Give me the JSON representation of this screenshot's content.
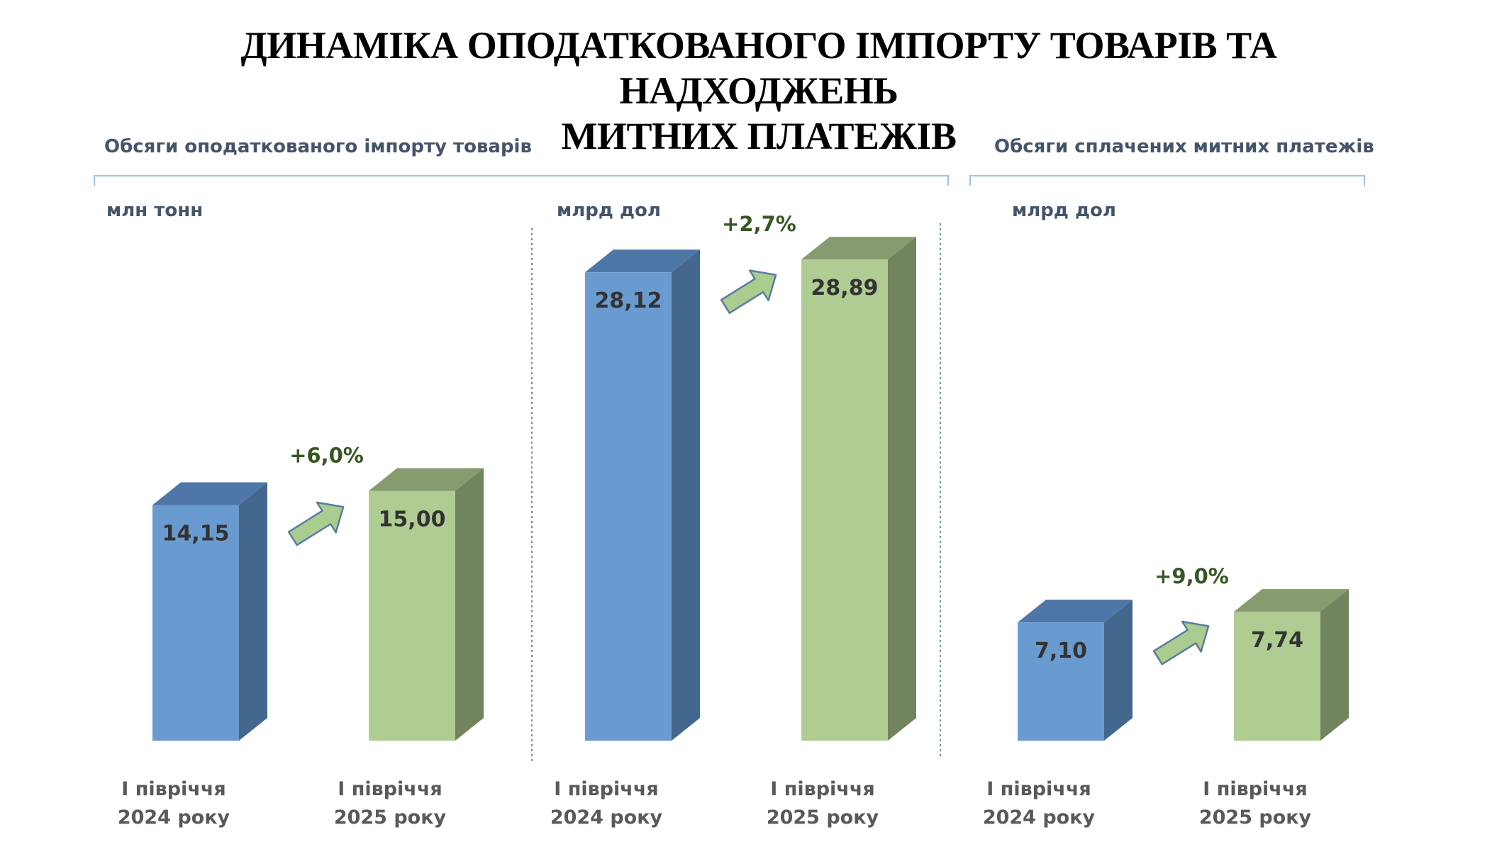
{
  "title_line1": "ДИНАМІКА ОПОДАТКОВАНОГО ІМПОРТУ ТОВАРІВ ТА НАДХОДЖЕНЬ",
  "title_line2": "МИТНИХ ПЛАТЕЖІВ",
  "groups": {
    "import": "Обсяги оподаткованого імпорту товарів",
    "payments": "Обсяги сплачених митних платежів"
  },
  "colors": {
    "blue_front": "#6A9BD0",
    "blue_side": "#44678D",
    "blue_top": "#4E77A8",
    "green_front": "#AFCD92",
    "green_side": "#71845E",
    "green_top": "#869C6E",
    "arrow_fill": "#A9CC8F",
    "arrow_stroke": "#5A7DA0"
  },
  "chart_data": [
    {
      "type": "bar",
      "unit": "млн тонн",
      "categories": [
        [
          "І півріччя",
          "2024 року"
        ],
        [
          "І півріччя",
          "2025 року"
        ]
      ],
      "values": [
        14.15,
        15.0
      ],
      "value_labels": [
        "14,15",
        "15,00"
      ],
      "change_label": "+6,0%"
    },
    {
      "type": "bar",
      "unit": "млрд дол",
      "categories": [
        [
          "І півріччя",
          "2024 року"
        ],
        [
          "І півріччя",
          "2025 року"
        ]
      ],
      "values": [
        28.12,
        28.89
      ],
      "value_labels": [
        "28,12",
        "28,89"
      ],
      "change_label": "+2,7%"
    },
    {
      "type": "bar",
      "unit": "млрд дол",
      "categories": [
        [
          "І півріччя",
          "2024 року"
        ],
        [
          "І півріччя",
          "2025 року"
        ]
      ],
      "values": [
        7.1,
        7.74
      ],
      "value_labels": [
        "7,10",
        "7,74"
      ],
      "change_label": "+9,0%"
    }
  ]
}
